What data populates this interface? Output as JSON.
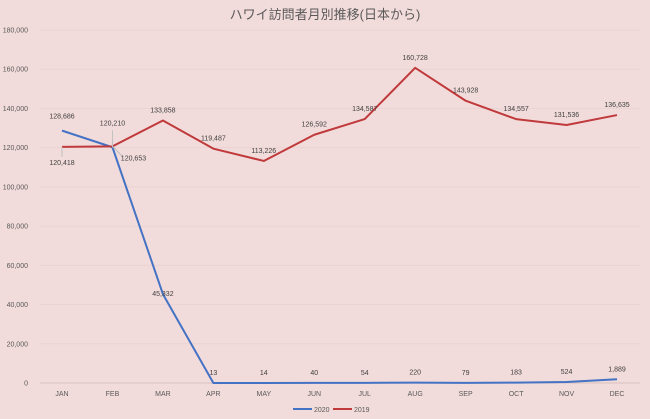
{
  "chart_data": {
    "type": "line",
    "title": "ハワイ訪問者月別推移(日本から)",
    "xlabel": "",
    "ylabel": "",
    "categories": [
      "JAN",
      "FEB",
      "MAR",
      "APR",
      "MAY",
      "JUN",
      "JUL",
      "AUG",
      "SEP",
      "OCT",
      "NOV",
      "DEC"
    ],
    "ylim": [
      0,
      180000
    ],
    "yticks": [
      0,
      20000,
      40000,
      60000,
      80000,
      100000,
      120000,
      140000,
      160000,
      180000
    ],
    "ytick_labels": [
      "0",
      "20,000",
      "40,000",
      "60,000",
      "80,000",
      "100,000",
      "120,000",
      "140,000",
      "160,000",
      "180,000"
    ],
    "grid": true,
    "legend": "bottom-center",
    "series": [
      {
        "name": "2020",
        "color": "#4472c4",
        "values": [
          128686,
          120210,
          45332,
          13,
          14,
          40,
          54,
          220,
          79,
          183,
          524,
          1889
        ],
        "labels": [
          "128,686",
          "120,210",
          "45,332",
          "13",
          "14",
          "40",
          "54",
          "220",
          "79",
          "183",
          "524",
          "1,889"
        ]
      },
      {
        "name": "2019",
        "color": "#c0393b",
        "values": [
          120418,
          120653,
          133858,
          119487,
          113226,
          126592,
          134587,
          160728,
          143928,
          134557,
          131536,
          136635
        ],
        "labels": [
          "120,418",
          "120,653",
          "133,858",
          "119,487",
          "113,226",
          "126,592",
          "134,587",
          "160,728",
          "143,928",
          "134,557",
          "131,536",
          "136,635"
        ]
      }
    ]
  }
}
